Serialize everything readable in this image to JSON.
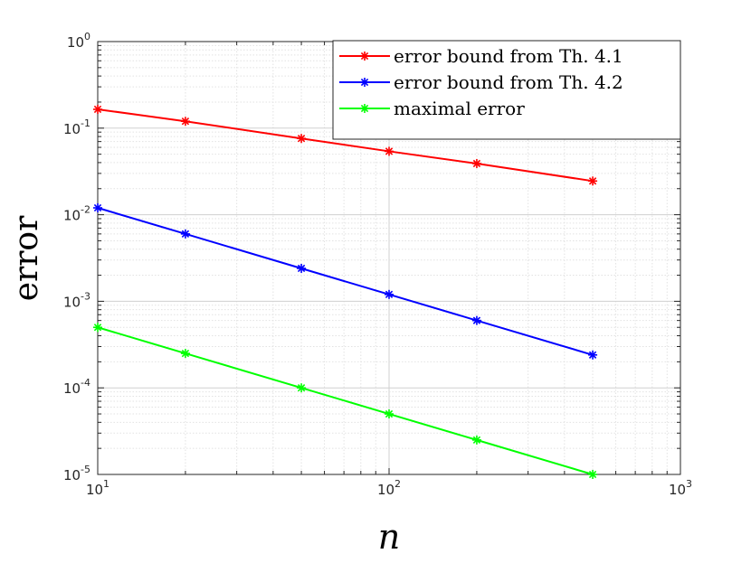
{
  "chart_data": {
    "type": "line",
    "xscale": "log",
    "yscale": "log",
    "xlim": [
      10,
      1000
    ],
    "ylim": [
      1e-05,
      1
    ],
    "grid": true,
    "minor_grid": true,
    "xlabel": "n",
    "ylabel": "error",
    "legend_position": "top-right",
    "x": [
      10,
      20,
      50,
      100,
      200,
      500
    ],
    "series": [
      {
        "name": "error bound from Th. 4.1",
        "color": "#ff0000",
        "marker": "asterisk",
        "values": [
          0.165,
          0.12,
          0.076,
          0.054,
          0.039,
          0.0245
        ]
      },
      {
        "name": "error bound from Th. 4.2",
        "color": "#0000ff",
        "marker": "asterisk",
        "values": [
          0.012,
          0.006,
          0.0024,
          0.0012,
          0.0006,
          0.00024
        ]
      },
      {
        "name": "maximal error",
        "color": "#00ff00",
        "marker": "asterisk",
        "values": [
          0.0005,
          0.00025,
          0.0001,
          5e-05,
          2.5e-05,
          1e-05
        ]
      }
    ],
    "xticks": [
      {
        "value": 10,
        "base": "10",
        "exp": "1"
      },
      {
        "value": 100,
        "base": "10",
        "exp": "2"
      },
      {
        "value": 1000,
        "base": "10",
        "exp": "3"
      }
    ],
    "yticks": [
      {
        "value": 1e-05,
        "base": "10",
        "exp": "-5"
      },
      {
        "value": 0.0001,
        "base": "10",
        "exp": "-4"
      },
      {
        "value": 0.001,
        "base": "10",
        "exp": "-3"
      },
      {
        "value": 0.01,
        "base": "10",
        "exp": "-2"
      },
      {
        "value": 0.1,
        "base": "10",
        "exp": "-1"
      },
      {
        "value": 1,
        "base": "10",
        "exp": "0"
      }
    ]
  }
}
